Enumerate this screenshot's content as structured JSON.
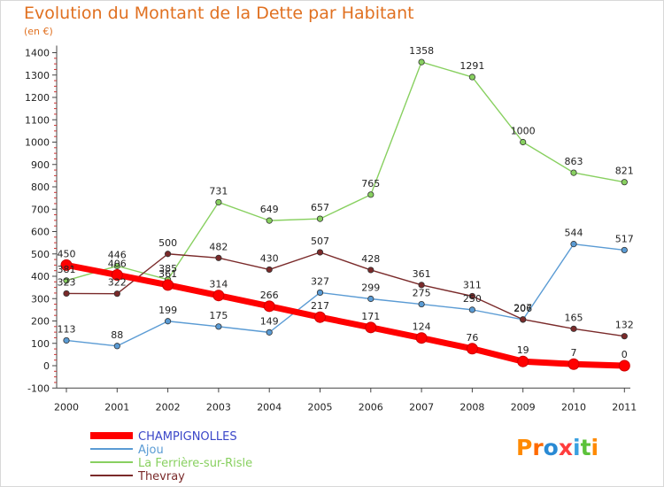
{
  "title": "Evolution du Montant de la Dette par Habitant",
  "subtitle": "(en €)",
  "logo": {
    "text": "Proxiti",
    "letters": [
      "P",
      "r",
      "o",
      "x",
      "i",
      "t",
      "i"
    ],
    "colors": [
      "#ff8a00",
      "#ff6a00",
      "#2a8ad4",
      "#ff3d3d",
      "#3aa0e0",
      "#5cc23a",
      "#ff8a00"
    ]
  },
  "chart_data": {
    "type": "line",
    "x": [
      "2000",
      "2001",
      "2002",
      "2003",
      "2004",
      "2005",
      "2006",
      "2007",
      "2008",
      "2009",
      "2010",
      "2011"
    ],
    "yticks": [
      -100,
      0,
      100,
      200,
      300,
      400,
      500,
      600,
      700,
      800,
      900,
      1000,
      1100,
      1200,
      1300,
      1400
    ],
    "ylim": [
      -100,
      1400
    ],
    "grid": false,
    "legend": "bottom-left",
    "series": [
      {
        "name": "CHAMPIGNOLLES",
        "color": "#ff0000",
        "values": [
          450,
          406,
          361,
          314,
          266,
          217,
          171,
          124,
          76,
          19,
          7,
          0
        ],
        "labels": [
          "450",
          "406",
          "361",
          "314",
          "266",
          "217",
          "171",
          "124",
          "76",
          "19",
          "7",
          "0"
        ]
      },
      {
        "name": "Ajou",
        "color": "#5a9bd4",
        "values": [
          113,
          88,
          199,
          175,
          149,
          327,
          299,
          275,
          250,
          206,
          544,
          517
        ],
        "labels": [
          "113",
          "88",
          "199",
          "175",
          "149",
          "327",
          "299",
          "275",
          "250",
          "206",
          "544",
          "517"
        ]
      },
      {
        "name": "La Ferrière-sur-Risle",
        "color": "#88d060",
        "values": [
          381,
          446,
          385,
          731,
          649,
          657,
          765,
          1358,
          1291,
          1000,
          863,
          821
        ],
        "labels": [
          "381",
          "446",
          "385",
          "731",
          "649",
          "657",
          "765",
          "1358",
          "1291",
          "1000",
          "863",
          "821"
        ]
      },
      {
        "name": "Thevray",
        "color": "#7a2a2a",
        "values": [
          323,
          322,
          500,
          482,
          430,
          507,
          428,
          361,
          311,
          207,
          165,
          132
        ],
        "labels": [
          "323",
          "322",
          "500",
          "482",
          "430",
          "507",
          "428",
          "361",
          "311",
          "207",
          "165",
          "132"
        ]
      }
    ]
  }
}
